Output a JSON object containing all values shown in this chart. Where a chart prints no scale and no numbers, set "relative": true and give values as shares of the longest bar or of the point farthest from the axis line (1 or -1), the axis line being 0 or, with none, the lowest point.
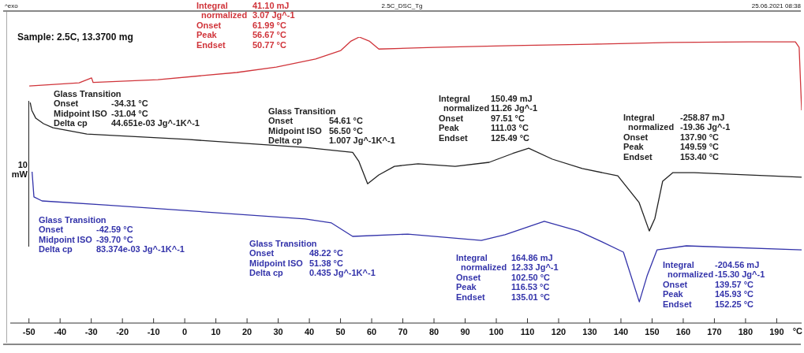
{
  "chart_data": {
    "type": "line",
    "title": "2.5C_DSC_Tg",
    "xlabel": "°C",
    "relative": true,
    "xlim": [
      -56,
      198
    ],
    "xticks": [
      -50,
      -40,
      -30,
      -20,
      -10,
      0,
      10,
      20,
      30,
      40,
      50,
      60,
      70,
      80,
      90,
      100,
      110,
      120,
      130,
      140,
      150,
      160,
      170,
      180,
      190
    ],
    "grid": false,
    "legend": false,
    "marker": "none",
    "line_style": "solid",
    "series": [
      {
        "color": "#d0343a",
        "x": [
          -49.9,
          -33.9,
          -29.9,
          -29.4,
          -8.6,
          16.7,
          29.4,
          42.0,
          50.1,
          53.4,
          56.0,
          59.2,
          62.3,
          80,
          105.3,
          130.6,
          156,
          181,
          196,
          197.2,
          198
        ],
        "values": [
          0.829,
          0.84,
          0.857,
          0.841,
          0.851,
          0.876,
          0.895,
          0.923,
          0.953,
          0.986,
          1.0,
          0.986,
          0.958,
          0.964,
          0.97,
          0.975,
          0.981,
          0.983,
          0.983,
          0.964,
          0.744
        ]
      },
      {
        "color": "#222222",
        "x": [
          -49.6,
          -49.1,
          -47.8,
          -45.3,
          -42.3,
          -31.4,
          0.8,
          38.7,
          53.9,
          55.9,
          58.7,
          62.3,
          67.3,
          74.9,
          86.8,
          97.7,
          105.3,
          110.4,
          118.0,
          127.6,
          139.0,
          145.8,
          149.1,
          150.9,
          153.4,
          156.7,
          163.5,
          198
        ],
        "values": [
          0.771,
          0.744,
          0.716,
          0.697,
          0.683,
          0.661,
          0.642,
          0.614,
          0.597,
          0.565,
          0.487,
          0.518,
          0.548,
          0.557,
          0.548,
          0.562,
          0.593,
          0.611,
          0.573,
          0.54,
          0.515,
          0.422,
          0.322,
          0.366,
          0.496,
          0.526,
          0.526,
          0.51
        ]
      },
      {
        "color": "#3333aa",
        "x": [
          -49.0,
          -48.4,
          -45.8,
          -25.6,
          38.7,
          47.1,
          53.9,
          71.6,
          95.2,
          102.8,
          115.4,
          126.3,
          133.9,
          140.8,
          145.9,
          148.4,
          151.6,
          161.0,
          198
        ],
        "values": [
          0.529,
          0.441,
          0.427,
          0.413,
          0.364,
          0.35,
          0.303,
          0.311,
          0.289,
          0.309,
          0.356,
          0.322,
          0.284,
          0.248,
          0.074,
          0.165,
          0.256,
          0.27,
          0.256
        ]
      }
    ],
    "annotations": [
      "^exo",
      "25.06.2021 08:38",
      "Sample: 2.5C, 13.3700 mg",
      "Integral\t41.10 mJ\n  normalized\t3.07 Jg^-1\nOnset\t61.99 °C\nPeak\t56.67 °C\nEndset\t50.77 °C",
      "Glass Transition\nOnset\t-34.31 °C\nMidpoint ISO\t-31.04 °C\nDelta cp\t44.651e-03 Jg^-1K^-1",
      "Glass Transition\nOnset\t54.61 °C\nMidpoint ISO\t56.50 °C\nDelta cp\t1.007 Jg^-1K^-1",
      "Integral\t150.49 mJ\n  normalized\t11.26 Jg^-1\nOnset\t97.51 °C\nPeak\t111.03 °C\nEndset\t125.49 °C",
      "Integral\t-258.87 mJ\n  normalized\t-19.36 Jg^-1\nOnset\t137.90 °C\nPeak\t149.59 °C\nEndset\t153.40 °C",
      "Glass Transition\nOnset\t-42.59 °C\nMidpoint ISO\t-39.70 °C\nDelta cp\t83.374e-03 Jg^-1K^-1",
      "Glass Transition\nOnset\t48.22 °C\nMidpoint ISO\t51.38 °C\nDelta cp\t0.435 Jg^-1K^-1",
      "Integral\t164.86 mJ\n  normalized\t12.33 Jg^-1\nOnset\t102.50 °C\nPeak\t116.53 °C\nEndset\t135.01 °C",
      "Integral\t-204.56 mJ\n  normalized\t-15.30 Jg^-1\nOnset\t139.57 °C\nPeak\t145.93 °C\nEndset\t152.25 °C",
      "10\nmW"
    ]
  }
}
